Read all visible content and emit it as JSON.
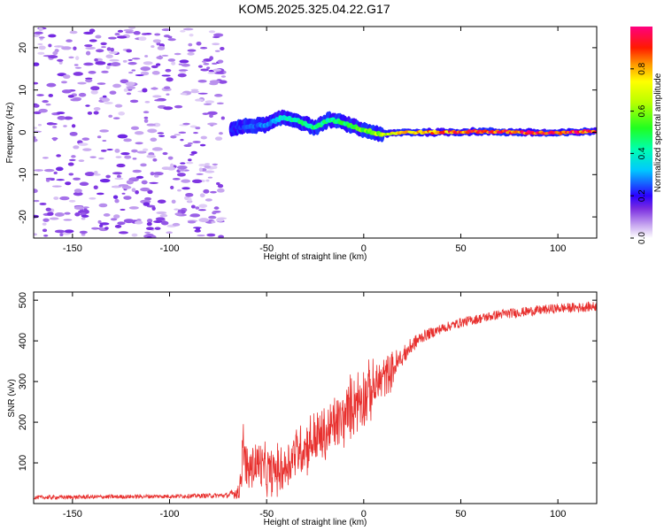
{
  "figure_title": "KOM5.2025.325.04.22.G17",
  "chart_data": [
    {
      "type": "heatmap",
      "xlabel": "Height of straight line (km)",
      "ylabel": "Frequency (Hz)",
      "xlim": [
        -170,
        120
      ],
      "ylim": [
        -25,
        25
      ],
      "xticks": [
        -150,
        -100,
        -50,
        0,
        50,
        100
      ],
      "yticks": [
        -20,
        -10,
        0,
        10,
        20
      ],
      "colorbar": {
        "label": "Normalized spectral amplitude",
        "range": [
          0,
          1
        ],
        "ticks": [
          "0.0",
          "0.2",
          "0.4",
          "0.6",
          "0.8"
        ]
      },
      "ridge": {
        "x": [
          -68,
          -60,
          -50,
          -42,
          -36,
          -30,
          -25,
          -18,
          -12,
          -6,
          0,
          5,
          10,
          20,
          40,
          60,
          80,
          100,
          120
        ],
        "y": [
          0.8,
          1.5,
          1.8,
          3.5,
          3.0,
          2.0,
          1.0,
          3.0,
          2.5,
          1.5,
          0.5,
          0.0,
          -0.5,
          0.0,
          0.0,
          0.2,
          0.0,
          -0.2,
          0.3
        ],
        "amplitude": [
          0.22,
          0.25,
          0.3,
          0.42,
          0.45,
          0.48,
          0.5,
          0.45,
          0.5,
          0.55,
          0.6,
          0.65,
          0.7,
          0.8,
          0.9,
          0.95,
          0.97,
          0.98,
          0.95
        ]
      },
      "noise_region_x": [
        -170,
        -72
      ],
      "noise_amplitude_max": 0.12
    },
    {
      "type": "line",
      "xlabel": "Height of straight line (km)",
      "ylabel": "SNR (v/v)",
      "xlim": [
        -170,
        120
      ],
      "ylim": [
        0,
        520
      ],
      "xticks": [
        -150,
        -100,
        -50,
        0,
        50,
        100
      ],
      "yticks": [
        100,
        200,
        300,
        400,
        500
      ],
      "series": [
        {
          "name": "SNR",
          "color": "#e8302e",
          "x": [
            -170,
            -100,
            -70,
            -64,
            -62,
            -60,
            -55,
            -50,
            -45,
            -40,
            -35,
            -30,
            -25,
            -20,
            -15,
            -10,
            -5,
            0,
            5,
            10,
            15,
            20,
            25,
            30,
            40,
            50,
            60,
            70,
            80,
            90,
            100,
            110,
            120
          ],
          "y": [
            15,
            18,
            20,
            30,
            140,
            80,
            100,
            75,
            80,
            90,
            130,
            140,
            160,
            165,
            195,
            210,
            250,
            265,
            280,
            310,
            330,
            360,
            390,
            410,
            430,
            445,
            455,
            465,
            470,
            475,
            480,
            482,
            485
          ],
          "noise": [
            5,
            5,
            6,
            20,
            55,
            50,
            55,
            50,
            50,
            50,
            55,
            55,
            60,
            60,
            60,
            60,
            65,
            65,
            55,
            45,
            35,
            25,
            20,
            15,
            12,
            12,
            12,
            12,
            12,
            12,
            12,
            12,
            12
          ]
        }
      ]
    }
  ]
}
